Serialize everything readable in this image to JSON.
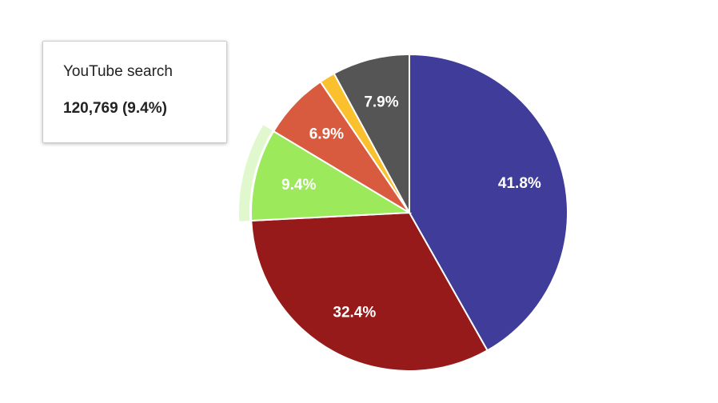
{
  "chart_data": {
    "type": "pie",
    "title": "",
    "slices": [
      {
        "value": 41.8,
        "label": "41.8%",
        "color": "#3f3d99"
      },
      {
        "value": 32.4,
        "label": "32.4%",
        "color": "#971a1a"
      },
      {
        "value": 9.4,
        "label": "9.4%",
        "color": "#9de95c",
        "highlighted": true
      },
      {
        "value": 6.9,
        "label": "6.9%",
        "color": "#d95b3f"
      },
      {
        "value": 1.6,
        "label": "",
        "color": "#fbc02d"
      },
      {
        "value": 7.9,
        "label": "7.9%",
        "color": "#555555"
      }
    ],
    "start_angle_deg": 0,
    "direction": "clockwise",
    "slice_border_color": "#ffffff"
  },
  "tooltip": {
    "label": "YouTube search",
    "value": "120,769 (9.4%)"
  }
}
